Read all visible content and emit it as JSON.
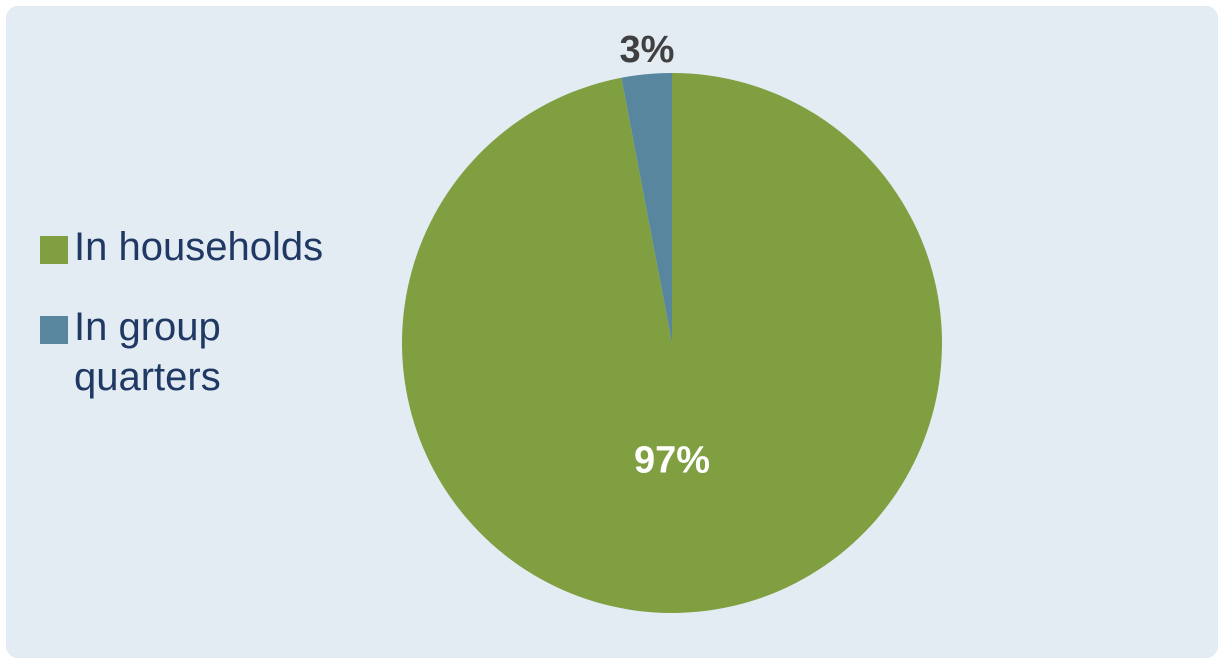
{
  "chart_data": {
    "type": "pie",
    "slices": [
      {
        "label": "In households",
        "value": 97,
        "data_label": "97%",
        "color": "#7f9f41",
        "label_color": "#ffffff"
      },
      {
        "label": "In group quarters",
        "value": 3,
        "data_label": "3%",
        "color": "#58869f",
        "label_color": "#404040"
      }
    ],
    "legend_placement": "left",
    "start_angle": "top, clockwise"
  },
  "colors": {
    "background": "#e3ebf3",
    "legend_text": "#1f3864"
  }
}
